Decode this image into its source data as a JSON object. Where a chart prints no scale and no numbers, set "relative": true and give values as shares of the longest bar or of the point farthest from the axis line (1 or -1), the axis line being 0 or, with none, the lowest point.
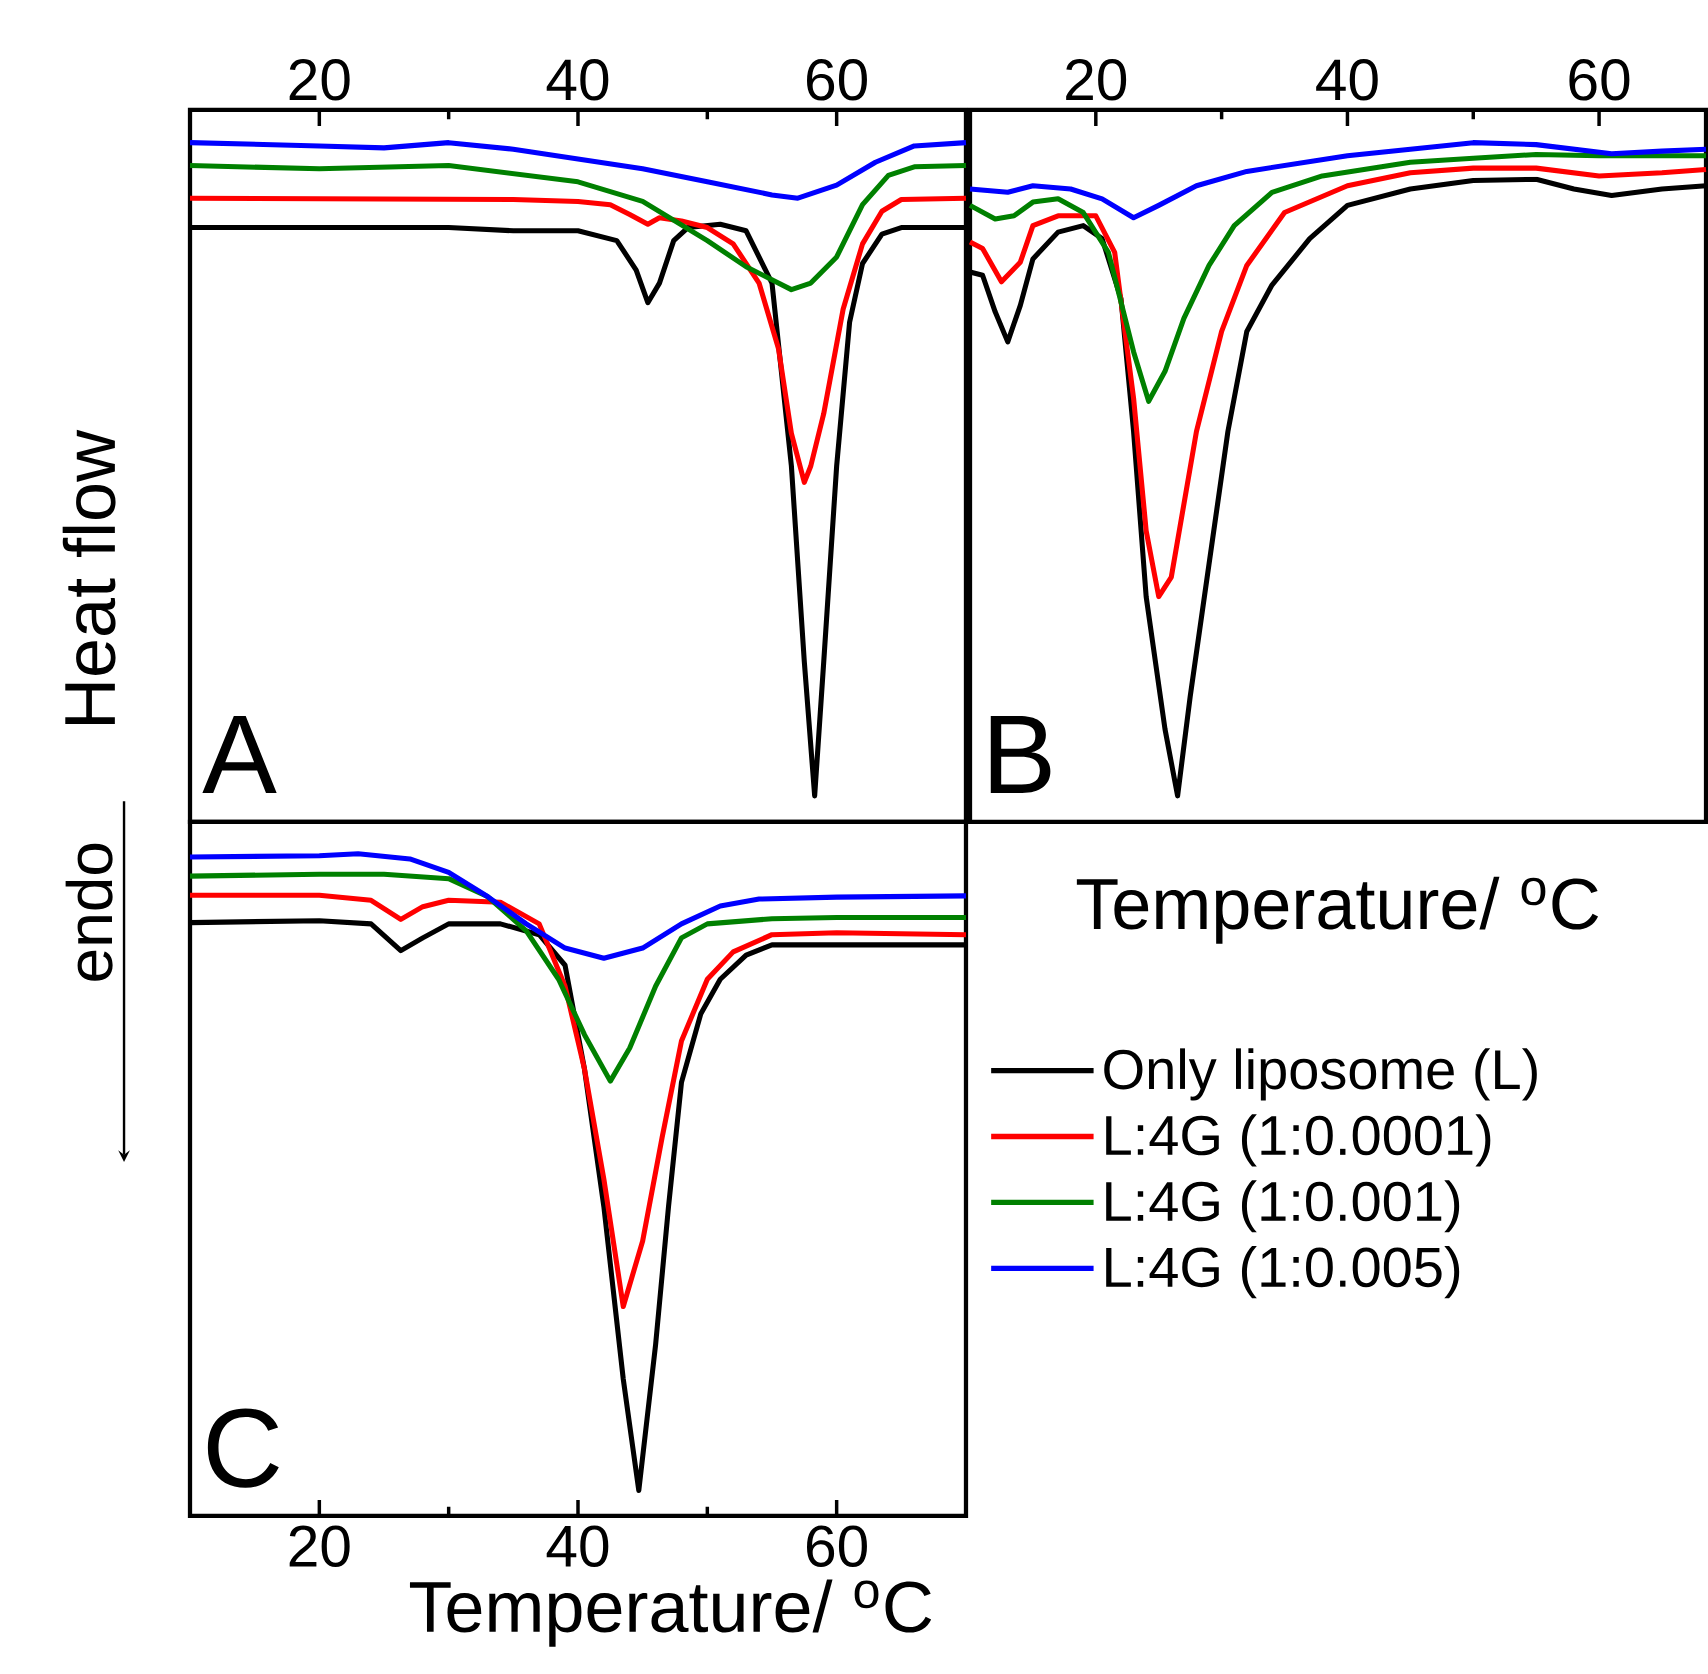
{
  "chart_data": [
    {
      "type": "line",
      "relative": true,
      "xlim": [
        10,
        70
      ],
      "xticks": [
        20,
        40,
        60
      ],
      "ylabel": "Heat flow",
      "annotations": [
        "A"
      ],
      "series": [
        {
          "color": "#000000",
          "x": [
            10,
            30,
            35,
            40,
            43,
            44.5,
            45.4,
            46.3,
            47.4,
            48.5,
            51,
            53,
            55,
            56.5,
            57.5,
            58.3,
            59,
            60,
            61,
            62,
            63.5,
            65,
            70
          ],
          "values": [
            0.87,
            0.87,
            0.865,
            0.865,
            0.85,
            0.805,
            0.755,
            0.785,
            0.85,
            0.87,
            0.875,
            0.865,
            0.785,
            0.505,
            0.205,
            0,
            0.205,
            0.505,
            0.725,
            0.815,
            0.86,
            0.87,
            0.87
          ]
        },
        {
          "color": "#ff0000",
          "x": [
            10,
            35,
            40,
            42.5,
            44,
            45.4,
            46.3,
            48,
            50,
            52,
            54,
            55.5,
            56.5,
            57.5,
            58,
            59,
            60.5,
            62,
            63.5,
            65,
            70
          ],
          "values": [
            0.915,
            0.913,
            0.91,
            0.905,
            0.89,
            0.875,
            0.885,
            0.88,
            0.87,
            0.845,
            0.785,
            0.685,
            0.555,
            0.48,
            0.505,
            0.585,
            0.745,
            0.845,
            0.895,
            0.913,
            0.915
          ]
        },
        {
          "color": "#008000",
          "x": [
            10,
            20,
            30,
            40,
            45,
            50,
            53,
            56.5,
            58,
            60,
            62,
            64,
            66,
            70
          ],
          "values": [
            0.965,
            0.96,
            0.965,
            0.94,
            0.91,
            0.85,
            0.81,
            0.775,
            0.785,
            0.825,
            0.905,
            0.95,
            0.963,
            0.965
          ]
        },
        {
          "color": "#0000ff",
          "x": [
            10,
            20,
            25,
            30,
            35,
            40,
            45,
            50,
            55,
            57,
            60,
            63,
            66,
            70
          ],
          "values": [
            1.0,
            0.995,
            0.992,
            1.0,
            0.99,
            0.975,
            0.96,
            0.94,
            0.92,
            0.915,
            0.935,
            0.97,
            0.995,
            1.0
          ]
        }
      ]
    },
    {
      "type": "line",
      "relative": true,
      "xlim": [
        10,
        68.5
      ],
      "xticks": [
        20,
        40,
        60
      ],
      "xlabel": "Temperature/ $^{o}$C",
      "annotations": [
        "B"
      ],
      "series": [
        {
          "color": "#000000",
          "x": [
            10,
            11,
            12,
            13,
            14,
            15,
            17,
            19,
            20.5,
            22,
            23,
            24,
            25.5,
            26.5,
            27.5,
            29,
            30.5,
            32,
            34,
            37,
            40,
            45,
            50,
            55,
            58,
            61,
            65,
            68.5
          ],
          "values": [
            0.802,
            0.797,
            0.741,
            0.695,
            0.751,
            0.822,
            0.863,
            0.873,
            0.853,
            0.761,
            0.558,
            0.305,
            0.102,
            0,
            0.152,
            0.355,
            0.558,
            0.711,
            0.782,
            0.853,
            0.904,
            0.929,
            0.942,
            0.944,
            0.929,
            0.919,
            0.929,
            0.934
          ]
        },
        {
          "color": "#ff0000",
          "x": [
            10,
            11,
            12.5,
            14,
            15,
            17,
            20,
            21.5,
            23,
            24,
            25,
            26,
            28,
            30,
            32,
            35,
            40,
            45,
            50,
            55,
            60,
            65,
            68.5
          ],
          "values": [
            0.848,
            0.838,
            0.787,
            0.817,
            0.873,
            0.888,
            0.888,
            0.832,
            0.609,
            0.406,
            0.305,
            0.335,
            0.558,
            0.711,
            0.812,
            0.893,
            0.934,
            0.954,
            0.961,
            0.961,
            0.949,
            0.954,
            0.959
          ]
        },
        {
          "color": "#008000",
          "x": [
            10,
            12,
            13.5,
            15,
            17,
            19,
            21,
            23,
            24.2,
            25.5,
            27,
            29,
            31,
            34,
            38,
            45,
            50,
            55,
            60,
            65,
            68.5
          ],
          "values": [
            0.904,
            0.883,
            0.888,
            0.909,
            0.914,
            0.893,
            0.832,
            0.68,
            0.604,
            0.65,
            0.731,
            0.812,
            0.873,
            0.924,
            0.949,
            0.97,
            0.976,
            0.982,
            0.98,
            0.98,
            0.98
          ]
        },
        {
          "color": "#0000ff",
          "x": [
            10,
            13,
            15,
            18,
            20.5,
            23,
            25,
            28,
            32,
            40,
            45,
            50,
            55,
            58,
            61,
            65,
            68.5
          ],
          "values": [
            0.929,
            0.924,
            0.934,
            0.929,
            0.914,
            0.885,
            0.904,
            0.934,
            0.956,
            0.98,
            0.99,
            1.0,
            0.997,
            0.99,
            0.983,
            0.987,
            0.99
          ]
        }
      ]
    },
    {
      "type": "line",
      "relative": true,
      "xlim": [
        10,
        70
      ],
      "xticks": [
        20,
        40,
        60
      ],
      "xlabel": "Temperature/ $^{o}$C",
      "annotations": [
        "C",
        "endo"
      ],
      "legend": "right",
      "series": [
        {
          "name": "Only liposome (L)",
          "color": "#000000",
          "x": [
            10,
            20,
            24,
            26.3,
            28,
            30,
            34,
            37,
            39,
            40.5,
            42,
            43.5,
            44.7,
            46,
            47,
            48,
            49.5,
            51,
            53,
            55,
            60,
            70
          ],
          "values": [
            0.892,
            0.895,
            0.89,
            0.848,
            0.868,
            0.89,
            0.89,
            0.873,
            0.825,
            0.662,
            0.446,
            0.175,
            0,
            0.229,
            0.446,
            0.641,
            0.749,
            0.803,
            0.841,
            0.857,
            0.857,
            0.857
          ]
        },
        {
          "name": "L:4G (1:0.0001)",
          "color": "#ff0000",
          "x": [
            10,
            20,
            24,
            26.3,
            28,
            30,
            34,
            37,
            39,
            40.5,
            42,
            43.5,
            45,
            46.5,
            48,
            50,
            52,
            55,
            60,
            70
          ],
          "values": [
            0.935,
            0.935,
            0.927,
            0.897,
            0.917,
            0.927,
            0.924,
            0.89,
            0.792,
            0.662,
            0.489,
            0.289,
            0.392,
            0.554,
            0.706,
            0.803,
            0.846,
            0.873,
            0.876,
            0.873
          ]
        },
        {
          "name": "L:4G (1:0.001)",
          "color": "#008000",
          "x": [
            10,
            20,
            25,
            30,
            33,
            36,
            38.5,
            40.5,
            42.5,
            44,
            46,
            48,
            50,
            55,
            60,
            70
          ],
          "values": [
            0.965,
            0.968,
            0.968,
            0.961,
            0.933,
            0.879,
            0.803,
            0.716,
            0.643,
            0.695,
            0.792,
            0.868,
            0.89,
            0.898,
            0.9,
            0.9
          ]
        },
        {
          "name": "L:4G (1:0.005)",
          "color": "#0000ff",
          "x": [
            10,
            20,
            23,
            27,
            30,
            33,
            36,
            39,
            42,
            45,
            48,
            51,
            54,
            60,
            70
          ],
          "values": [
            0.995,
            0.997,
            1.0,
            0.992,
            0.971,
            0.933,
            0.89,
            0.852,
            0.836,
            0.852,
            0.89,
            0.918,
            0.929,
            0.932,
            0.934
          ]
        }
      ]
    }
  ]
}
